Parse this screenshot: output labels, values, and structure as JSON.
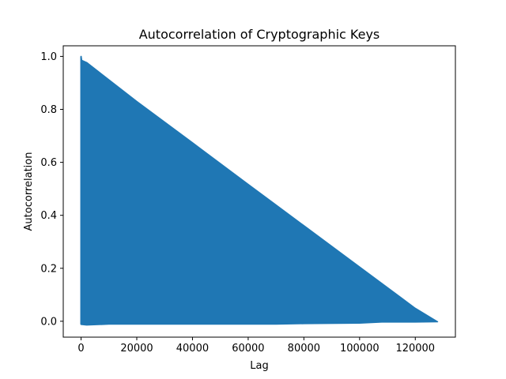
{
  "chart_data": {
    "type": "line",
    "title": "Autocorrelation of Cryptographic Keys",
    "xlabel": "Lag",
    "ylabel": "Autocorrelation",
    "xlim": [
      -6400,
      134400
    ],
    "ylim": [
      -0.06,
      1.04
    ],
    "x_ticks": [
      0,
      20000,
      40000,
      60000,
      80000,
      100000,
      120000
    ],
    "x_tick_labels": [
      "0",
      "20000",
      "40000",
      "60000",
      "80000",
      "100000",
      "120000"
    ],
    "y_ticks": [
      0.0,
      0.2,
      0.4,
      0.6,
      0.8,
      1.0
    ],
    "y_tick_labels": [
      "0.0",
      "0.2",
      "0.4",
      "0.6",
      "0.8",
      "1.0"
    ],
    "grid": false,
    "series": [
      {
        "color": "#1f77b4",
        "upper_envelope": {
          "x": [
            0,
            250,
            2000,
            20000,
            40000,
            60000,
            80000,
            100000,
            120000,
            128000
          ],
          "y": [
            1.0,
            0.985,
            0.977,
            0.83,
            0.674,
            0.517,
            0.361,
            0.205,
            0.049,
            -0.002
          ]
        },
        "lower_envelope": {
          "x": [
            0,
            2000,
            10000,
            40000,
            70000,
            80000,
            100000,
            108000,
            120000,
            128000
          ],
          "y": [
            -0.012,
            -0.014,
            -0.011,
            -0.011,
            -0.011,
            -0.009,
            -0.007,
            -0.003,
            -0.003,
            -0.002
          ]
        }
      }
    ]
  }
}
